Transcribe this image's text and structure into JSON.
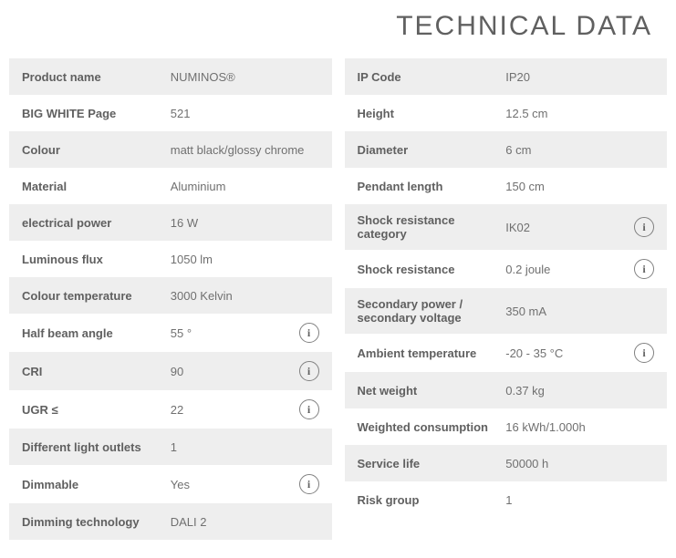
{
  "title": "TECHNICAL DATA",
  "info_glyph": "i",
  "colors": {
    "row_odd_bg": "#eeeeee",
    "row_even_bg": "#ffffff",
    "text_label": "#606060",
    "text_value": "#707070",
    "info_border": "#808080"
  },
  "left": {
    "rows": [
      {
        "label": "Product name",
        "value": "NUMINOS®",
        "info": false
      },
      {
        "label": "BIG WHITE Page",
        "value": "521",
        "info": false
      },
      {
        "label": "Colour",
        "value": "matt black/glossy chrome",
        "info": false
      },
      {
        "label": "Material",
        "value": "Aluminium",
        "info": false
      },
      {
        "label": "electrical power",
        "value": "16 W",
        "info": false
      },
      {
        "label": "Luminous flux",
        "value": "1050 lm",
        "info": false
      },
      {
        "label": "Colour temperature",
        "value": "3000 Kelvin",
        "info": false
      },
      {
        "label": "Half beam angle",
        "value": "55 °",
        "info": true
      },
      {
        "label": "CRI",
        "value": "90",
        "info": true
      },
      {
        "label": "UGR ≤",
        "value": "22",
        "info": true
      },
      {
        "label": "Different light outlets",
        "value": "1",
        "info": false
      },
      {
        "label": "Dimmable",
        "value": "Yes",
        "info": true
      },
      {
        "label": "Dimming technology",
        "value": "DALI 2",
        "info": false
      }
    ]
  },
  "right": {
    "rows": [
      {
        "label": "IP Code",
        "value": "IP20",
        "info": false
      },
      {
        "label": "Height",
        "value": "12.5 cm",
        "info": false
      },
      {
        "label": "Diameter",
        "value": "6 cm",
        "info": false
      },
      {
        "label": "Pendant length",
        "value": "150 cm",
        "info": false
      },
      {
        "label": "Shock resistance category",
        "value": "IK02",
        "info": true
      },
      {
        "label": "Shock resistance",
        "value": "0.2 joule",
        "info": true
      },
      {
        "label": "Secondary power / secondary voltage",
        "value": "350 mA",
        "info": false
      },
      {
        "label": "Ambient temperature",
        "value": "-20 - 35 °C",
        "info": true
      },
      {
        "label": "Net weight",
        "value": "0.37 kg",
        "info": false
      },
      {
        "label": "Weighted consumption",
        "value": "16 kWh/1.000h",
        "info": false
      },
      {
        "label": "Service life",
        "value": "50000 h",
        "info": false
      },
      {
        "label": "Risk group",
        "value": "1",
        "info": false
      }
    ]
  }
}
